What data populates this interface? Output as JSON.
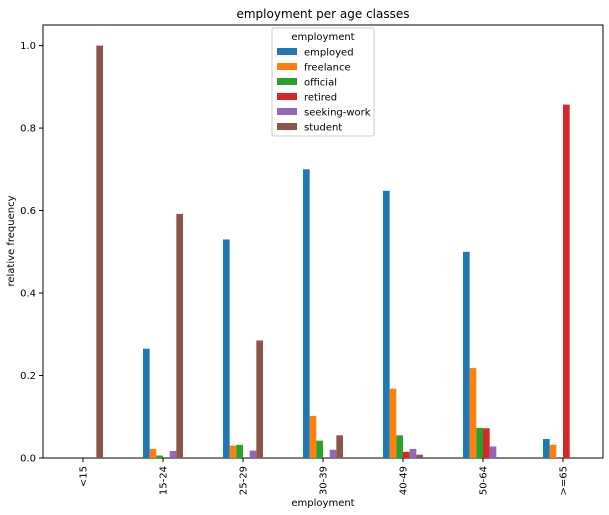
{
  "chart_data": {
    "type": "bar",
    "title": "employment per age classes",
    "xlabel": "employment",
    "ylabel": "relative frequency",
    "ylim": [
      0,
      1.05
    ],
    "yticks": [
      "0.0",
      "0.2",
      "0.4",
      "0.6",
      "0.8",
      "1.0"
    ],
    "categories": [
      "<15",
      "15-24",
      "25-29",
      "30-39",
      "40-49",
      "50-64",
      ">=65"
    ],
    "legend": {
      "title": "employment",
      "placement": "top-center"
    },
    "grid": false,
    "series": [
      {
        "name": "employed",
        "color": "#1f77b4",
        "values": [
          0,
          0.265,
          0.53,
          0.7,
          0.648,
          0.5,
          0.046
        ]
      },
      {
        "name": "freelance",
        "color": "#ff7f0e",
        "values": [
          0,
          0.022,
          0.03,
          0.102,
          0.168,
          0.218,
          0.032
        ]
      },
      {
        "name": "official",
        "color": "#2ca02c",
        "values": [
          0,
          0.006,
          0.032,
          0.042,
          0.055,
          0.073,
          0
        ]
      },
      {
        "name": "retired",
        "color": "#d62728",
        "values": [
          0,
          0,
          0,
          0,
          0.015,
          0.072,
          0.857
        ]
      },
      {
        "name": "seeking-work",
        "color": "#9467bd",
        "values": [
          0,
          0.017,
          0.018,
          0.02,
          0.022,
          0.028,
          0
        ]
      },
      {
        "name": "student",
        "color": "#8c564b",
        "values": [
          1.0,
          0.592,
          0.285,
          0.055,
          0.008,
          0,
          0
        ]
      }
    ]
  }
}
